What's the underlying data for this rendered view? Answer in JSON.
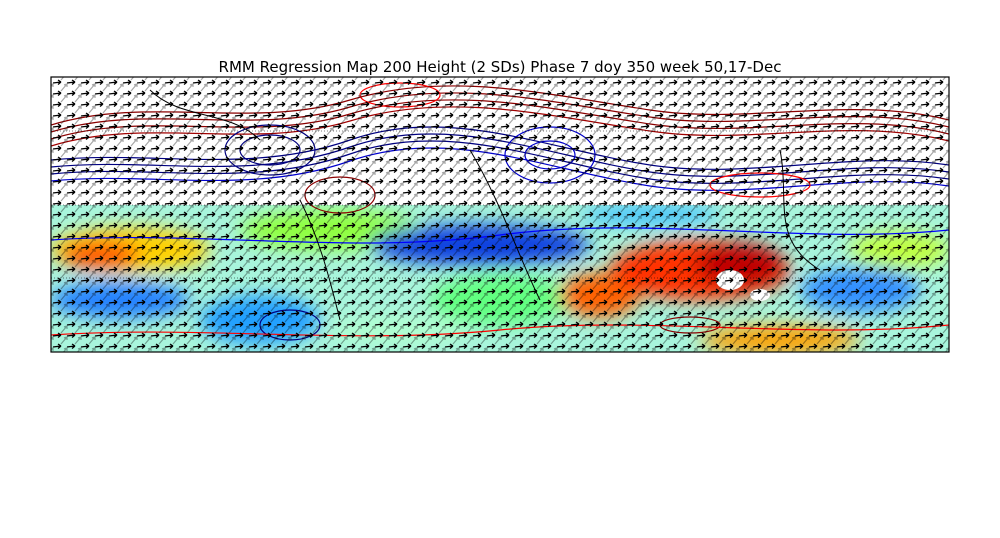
{
  "title": "RMM Regression Map 200 Height (2 SDs) Phase 7 doy 350 week 50,17-Dec"
}
